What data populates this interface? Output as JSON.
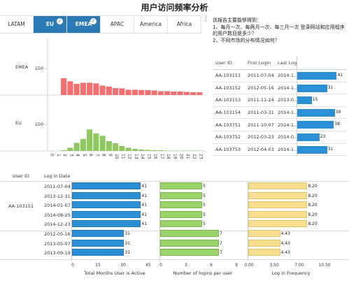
{
  "title": "用户访问频率分析",
  "tabs": [
    {
      "label": "LATAM",
      "active": false
    },
    {
      "label": "EU",
      "active": true
    },
    {
      "label": "EMEA",
      "active": true
    },
    {
      "label": "APAC",
      "active": false
    },
    {
      "label": "America",
      "active": false
    },
    {
      "label": "Africa",
      "active": false
    }
  ],
  "description": [
    "该报告主要能够得到：",
    "1、每月一次、每两月一次、每三月一次 登录网站和应用程序的用户数目是多少？",
    "2、不同市场的分布情况如何？"
  ],
  "histogram": {
    "rows": [
      {
        "label": "EMEA",
        "max_label": "150",
        "color": "#f36f6f",
        "values": [
          0,
          0,
          96,
          78,
          64,
          70,
          70,
          66,
          54,
          48,
          40,
          38,
          30,
          30,
          28,
          28,
          26,
          22,
          22,
          20,
          20,
          18,
          16,
          16
        ]
      },
      {
        "label": "EU",
        "max_label": "150",
        "color": "#8fc85e",
        "values": [
          0,
          0,
          4,
          18,
          46,
          68,
          122,
          100,
          86,
          56,
          44,
          28,
          18,
          12,
          8,
          6,
          4,
          4,
          2,
          2,
          2,
          2,
          2,
          2
        ]
      }
    ],
    "x_ticks": [
      "0",
      "1",
      "2",
      "3",
      "4",
      "5",
      "6",
      "7",
      "8",
      "9",
      "10",
      "11",
      "12",
      "13",
      "14",
      "15",
      "16",
      "17",
      "18",
      "19",
      "20",
      "21",
      "22",
      "23"
    ]
  },
  "login_table": {
    "headers": [
      "User ID",
      "First Login",
      "Last Login"
    ],
    "rows": [
      {
        "id": "AA-103151",
        "first": "2011-07-04",
        "last": "2014-1…",
        "value": 41
      },
      {
        "id": "AA-103152",
        "first": "2012-05-16",
        "last": "2014-1…",
        "value": 31
      },
      {
        "id": "AA-103153",
        "first": "2011-11-24",
        "last": "2013-0…",
        "value": 15
      },
      {
        "id": "AA-103154",
        "first": "2011-03-31",
        "last": "2014-1…",
        "value": 39
      },
      {
        "id": "AA-103751",
        "first": "2011-10-07",
        "last": "2014-1…",
        "value": 38
      },
      {
        "id": "AA-103752",
        "first": "2012-03-23",
        "last": "2014-0…",
        "value": 23
      },
      {
        "id": "AA-103753",
        "first": "2012-04-03",
        "last": "2014-1…",
        "value": 31
      }
    ],
    "max": 45
  },
  "detail": {
    "headers": [
      "User ID",
      "Log in Date"
    ],
    "group_id": "AA-103151",
    "rows": [
      {
        "date": "2011-07-04",
        "months": "41",
        "logins": "5",
        "freq": "8.20"
      },
      {
        "date": "2013-12-31",
        "months": "41",
        "logins": "5",
        "freq": "8.20"
      },
      {
        "date": "2014-01-07",
        "months": "41",
        "logins": "5",
        "freq": "8.20"
      },
      {
        "date": "2014-08-25",
        "months": "41",
        "logins": "5",
        "freq": "8.20"
      },
      {
        "date": "2014-12-23",
        "months": "41",
        "logins": "5",
        "freq": "8.20"
      },
      {
        "date": "2012-05-16",
        "months": "31",
        "logins": "7",
        "freq": "4.43"
      },
      {
        "date": "2013-05-07",
        "months": "31",
        "logins": "7",
        "freq": "4.43"
      },
      {
        "date": "2013-09-19",
        "months": "31",
        "logins": "7",
        "freq": "4.43"
      }
    ],
    "panels": [
      {
        "key": "months",
        "color": "#2b8fd6",
        "max": 45,
        "ticks": [
          "0",
          "15",
          "30",
          "45"
        ],
        "title": "Total Months User is Active"
      },
      {
        "key": "logins",
        "color": "#9ad46b",
        "max": 9,
        "ticks": [
          "0",
          "3",
          "6",
          "9"
        ],
        "title": "Number of logins per user"
      },
      {
        "key": "freq",
        "color": "#f7dd8e",
        "max": 10.5,
        "ticks": [
          "0.00",
          "3.50",
          "7.00",
          "10.50"
        ],
        "title": "Log in Frequency"
      }
    ]
  }
}
